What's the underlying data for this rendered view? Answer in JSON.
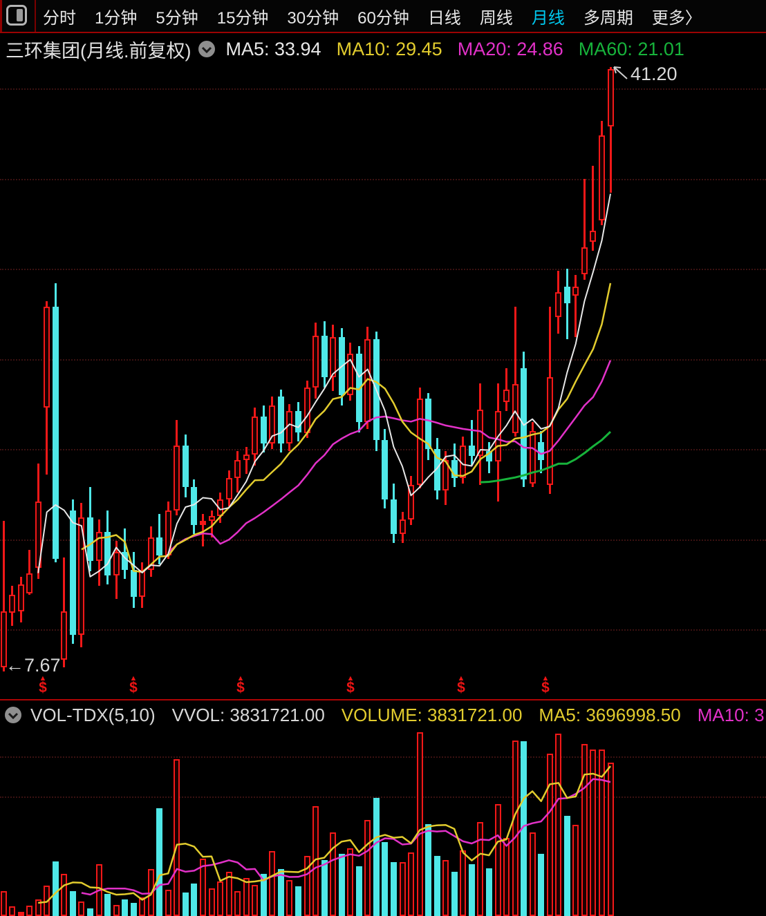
{
  "toolbar": {
    "tabs": [
      "分时",
      "1分钟",
      "5分钟",
      "15分钟",
      "30分钟",
      "60分钟",
      "日线",
      "周线",
      "月线",
      "多周期",
      "更多〉"
    ],
    "active_tab": "月线"
  },
  "header": {
    "title": "三环集团(月线.前复权)",
    "indicators": [
      {
        "label": "MA5: 33.94",
        "color": "#e8e8e8"
      },
      {
        "label": "MA10: 29.45",
        "color": "#e2cc2e"
      },
      {
        "label": "MA20: 24.86",
        "color": "#e washing"
      },
      {
        "label": "MA60: 21.01",
        "color": "#17b33b"
      }
    ]
  },
  "volume_header": {
    "items": [
      {
        "label": "VOL-TDX(5,10)",
        "color": "#d8d8d8"
      },
      {
        "label": "VVOL: 3831721.00",
        "color": "#d8d8d8"
      },
      {
        "label": "VOLUME: 3831721.00",
        "color": "#e2cc2e"
      },
      {
        "label": "MA5: 3696998.50",
        "color": "#e2cc2e"
      },
      {
        "label": "MA10: 3",
        "color": "#e231c8"
      }
    ]
  },
  "chart_data": {
    "type": "candlestick",
    "period": "monthly",
    "annotations": {
      "high_label": "41.20",
      "low_label": "←7.67",
      "high_value": 41.2,
      "low_value": 7.67
    },
    "price_gridlines": [
      40,
      35,
      30,
      25,
      20,
      15,
      10
    ],
    "volume_gridlines": [
      4000000,
      3000000
    ],
    "ma_last": {
      "ma5": 33.94,
      "ma10": 29.45,
      "ma20": 24.86,
      "ma60": 21.01
    },
    "vol_ma_last": {
      "ma5": 3696998.5,
      "vvol": 3831721.0
    },
    "dividend_marker_xs": [
      62,
      193,
      348,
      507,
      667,
      789
    ],
    "dividend_marker": {
      "arrow_glyph": "▲",
      "dollar_glyph": "$"
    },
    "colors": {
      "up": "#f21818",
      "up_fill": "#1c0000",
      "down": "#4fe8e8",
      "ma5": "#e8e8e8",
      "ma10": "#e2cc2e",
      "ma20": "#e231c8",
      "ma60": "#17b33b",
      "active_tab": "#00c8ee",
      "label": "#d8d8d8"
    },
    "candles_format": [
      "open",
      "high",
      "low",
      "close",
      "volume"
    ],
    "candles": [
      [
        7.9,
        16.0,
        7.67,
        11.0,
        630000
      ],
      [
        10.9,
        12.4,
        10.2,
        11.9,
        240000
      ],
      [
        11.0,
        12.9,
        10.4,
        12.5,
        100000
      ],
      [
        12.0,
        14.4,
        11.9,
        13.1,
        260000
      ],
      [
        13.4,
        19.2,
        12.8,
        17.1,
        410000
      ],
      [
        22.3,
        28.2,
        18.6,
        27.9,
        760000
      ],
      [
        27.9,
        29.2,
        13.7,
        13.9,
        1360000
      ],
      [
        8.3,
        14.0,
        7.9,
        11.0,
        1050000
      ],
      [
        16.6,
        17.2,
        9.2,
        9.7,
        620000
      ],
      [
        9.7,
        17.0,
        9.0,
        16.2,
        370000
      ],
      [
        16.2,
        17.9,
        13.2,
        13.8,
        190000
      ],
      [
        13.8,
        16.1,
        12.4,
        15.4,
        1290000
      ],
      [
        15.4,
        16.6,
        12.5,
        13.0,
        550000
      ],
      [
        13.0,
        14.9,
        11.7,
        14.3,
        270000
      ],
      [
        14.3,
        15.6,
        12.8,
        13.3,
        420000
      ],
      [
        13.3,
        14.3,
        11.2,
        11.8,
        330000
      ],
      [
        11.8,
        13.7,
        11.2,
        13.3,
        460000
      ],
      [
        13.3,
        15.7,
        12.9,
        15.1,
        1180000
      ],
      [
        15.1,
        16.4,
        13.6,
        14.1,
        2700000
      ],
      [
        14.1,
        17.1,
        13.9,
        16.6,
        660000
      ],
      [
        16.6,
        21.6,
        16.3,
        20.2,
        3920000
      ],
      [
        20.2,
        20.8,
        17.3,
        17.9,
        590000
      ],
      [
        17.9,
        18.3,
        15.3,
        15.8,
        810000
      ],
      [
        15.8,
        16.4,
        14.6,
        16.0,
        1430000
      ],
      [
        16.0,
        16.6,
        15.1,
        16.3,
        700000
      ],
      [
        16.3,
        17.6,
        15.9,
        17.2,
        870000
      ],
      [
        17.2,
        18.8,
        16.8,
        18.4,
        1100000
      ],
      [
        18.4,
        19.9,
        17.6,
        19.4,
        620000
      ],
      [
        19.4,
        20.1,
        18.6,
        19.7,
        950000
      ],
      [
        19.7,
        22.3,
        19.1,
        21.8,
        780000
      ],
      [
        21.8,
        22.4,
        19.8,
        20.3,
        1050000
      ],
      [
        20.3,
        22.9,
        20.0,
        22.4,
        1620000
      ],
      [
        22.9,
        23.3,
        19.8,
        20.3,
        1180000
      ],
      [
        20.3,
        22.5,
        19.9,
        22.1,
        900000
      ],
      [
        22.1,
        22.6,
        20.4,
        20.9,
        740000
      ],
      [
        20.9,
        23.8,
        20.6,
        23.4,
        1510000
      ],
      [
        23.4,
        27.0,
        22.8,
        26.3,
        2750000
      ],
      [
        26.3,
        27.1,
        23.4,
        24.0,
        1400000
      ],
      [
        24.0,
        26.9,
        23.2,
        26.2,
        2100000
      ],
      [
        26.2,
        26.7,
        22.4,
        23.0,
        1550000
      ],
      [
        23.0,
        25.9,
        22.7,
        25.3,
        1700000
      ],
      [
        25.3,
        25.7,
        20.9,
        21.5,
        1250000
      ],
      [
        21.5,
        26.8,
        21.1,
        26.1,
        2400000
      ],
      [
        26.1,
        26.5,
        19.9,
        20.5,
        2950000
      ],
      [
        20.5,
        21.1,
        16.7,
        17.2,
        1850000
      ],
      [
        17.2,
        18.1,
        14.8,
        15.3,
        1350000
      ],
      [
        15.3,
        16.5,
        14.8,
        16.1,
        1350000
      ],
      [
        16.1,
        18.5,
        15.8,
        18.0,
        1600000
      ],
      [
        18.0,
        23.4,
        17.8,
        22.8,
        4600000
      ],
      [
        22.8,
        23.1,
        19.4,
        20.0,
        2300000
      ],
      [
        20.0,
        20.6,
        17.2,
        17.7,
        1500000
      ],
      [
        17.7,
        19.9,
        16.9,
        19.4,
        1400000
      ],
      [
        19.4,
        20.3,
        17.9,
        18.4,
        1100000
      ],
      [
        18.4,
        20.7,
        18.1,
        20.2,
        1650000
      ],
      [
        20.2,
        21.6,
        19.1,
        19.6,
        1300000
      ],
      [
        19.6,
        23.65,
        18.0,
        22.2,
        2350000
      ],
      [
        19.9,
        20.4,
        18.65,
        19.3,
        1200000
      ],
      [
        19.3,
        23.65,
        17.1,
        22.1,
        2800000
      ],
      [
        22.6,
        24.5,
        22.1,
        23.3,
        1950000
      ],
      [
        20.9,
        27.9,
        20.7,
        23.6,
        4400000
      ],
      [
        24.5,
        25.4,
        17.9,
        18.3,
        4370000
      ],
      [
        18.1,
        21.5,
        17.9,
        21.0,
        2100000
      ],
      [
        20.4,
        21.0,
        18.65,
        19.4,
        1550000
      ],
      [
        18.0,
        27.9,
        17.5,
        24.0,
        4070000
      ],
      [
        27.3,
        29.9,
        26.4,
        28.7,
        4560000
      ],
      [
        29.0,
        30.0,
        26.1,
        28.1,
        2500000
      ],
      [
        28.5,
        29.65,
        26.2,
        29.0,
        2280000
      ],
      [
        29.7,
        35.0,
        29.4,
        31.2,
        4300000
      ],
      [
        31.5,
        35.7,
        31.0,
        32.1,
        4170000
      ],
      [
        32.7,
        38.2,
        32.4,
        37.4,
        4170000
      ],
      [
        37.9,
        41.2,
        34.2,
        41.08,
        3831721
      ]
    ]
  }
}
